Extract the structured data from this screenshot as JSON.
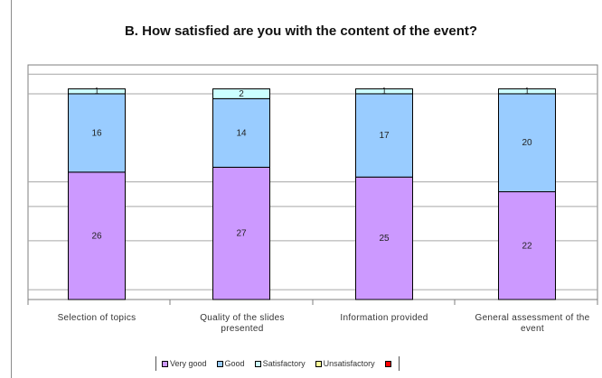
{
  "chart_data": {
    "type": "bar",
    "stacked": true,
    "title": "B. How satisfied are you with the content of the event?",
    "categories": [
      "Selection of topics",
      "Quality of the slides presented",
      "Information provided",
      "General assessment of the event"
    ],
    "series": [
      {
        "name": "Very good",
        "values": [
          26,
          27,
          25,
          22
        ],
        "color": "#cc99ff"
      },
      {
        "name": "Good",
        "values": [
          16,
          14,
          17,
          20
        ],
        "color": "#99ccff"
      },
      {
        "name": "Satisfactory",
        "values": [
          1,
          2,
          1,
          1
        ],
        "color": "#ccffff"
      },
      {
        "name": "Unsatisfactory",
        "values": [
          0,
          0,
          0,
          0
        ],
        "color": "#ffff99"
      },
      {
        "name": "",
        "values": [
          0,
          0,
          0,
          0
        ],
        "color": "#ff0000"
      }
    ],
    "data_labels": [
      [
        "26",
        "27",
        "25",
        "22"
      ],
      [
        "16",
        "14",
        "17",
        "20"
      ],
      [
        "1",
        "2",
        "1",
        "1"
      ]
    ],
    "ylim": [
      0,
      45
    ],
    "grid": true,
    "legend": "bottom"
  }
}
